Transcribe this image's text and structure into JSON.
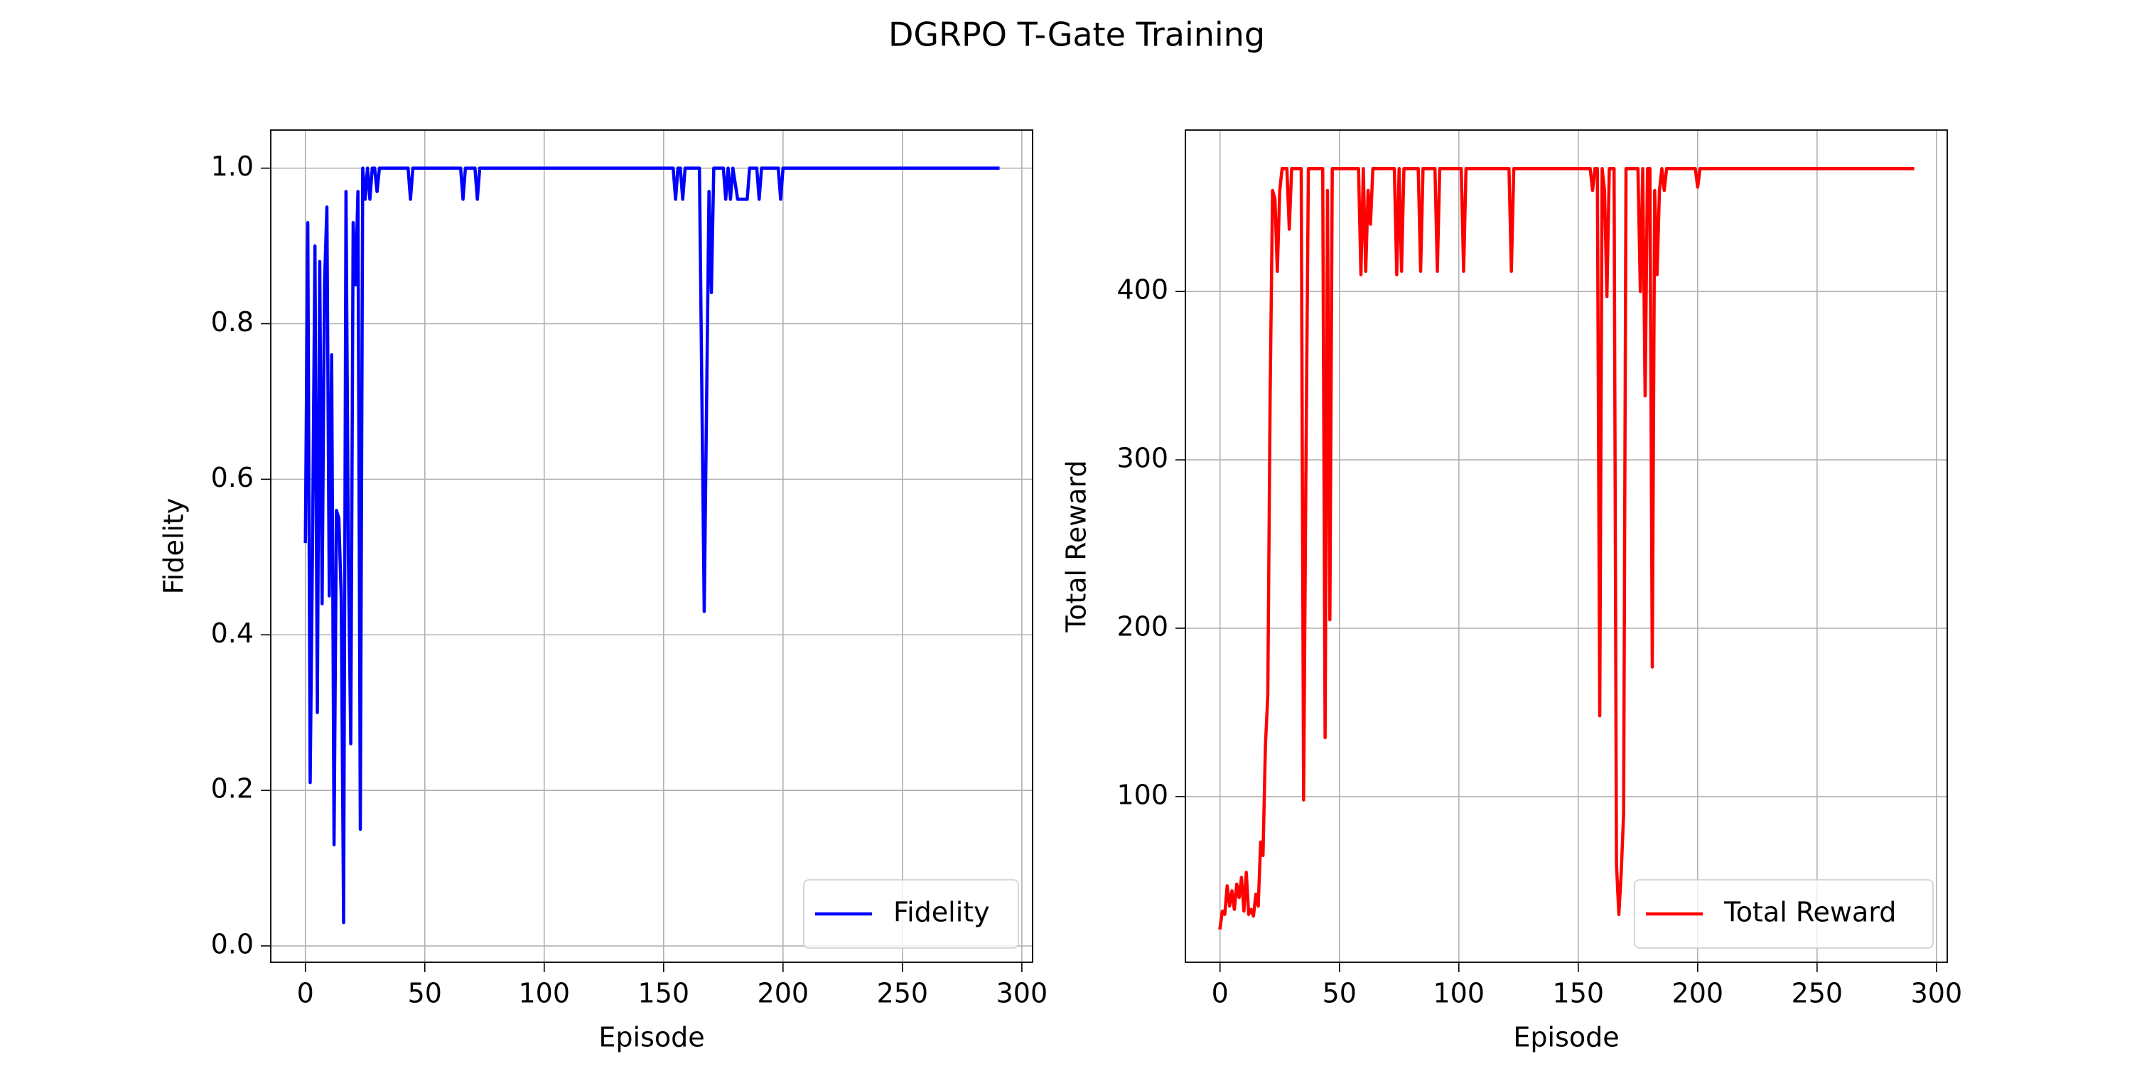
{
  "title": "DGRPO T-Gate Training",
  "chart_data": [
    {
      "type": "line",
      "x_label": "Episode",
      "y_label": "Fidelity",
      "x": [
        0,
        1,
        2,
        3,
        4,
        5,
        6,
        7,
        8,
        9,
        10,
        11,
        12,
        13,
        14,
        15,
        16,
        17,
        18,
        19,
        20,
        21,
        22,
        23,
        24,
        25,
        26,
        27,
        28,
        29,
        30,
        31,
        43,
        44,
        45,
        65,
        66,
        67,
        71,
        72,
        73,
        154,
        155,
        156,
        157,
        158,
        159,
        165,
        167,
        169,
        170,
        171,
        175,
        176,
        177,
        178,
        179,
        181,
        185,
        186,
        189,
        190,
        191,
        198,
        199,
        200,
        290
      ],
      "series": [
        {
          "name": "Fidelity",
          "color": "#0000ff",
          "values": [
            0.52,
            0.93,
            0.21,
            0.52,
            0.9,
            0.3,
            0.88,
            0.44,
            0.85,
            0.95,
            0.45,
            0.76,
            0.13,
            0.56,
            0.55,
            0.45,
            0.03,
            0.97,
            0.5,
            0.26,
            0.93,
            0.85,
            0.97,
            0.15,
            1.0,
            0.96,
            1.0,
            0.96,
            1.0,
            1.0,
            0.97,
            1.0,
            1.0,
            0.96,
            1.0,
            1.0,
            0.96,
            1.0,
            1.0,
            0.96,
            1.0,
            1.0,
            0.96,
            1.0,
            1.0,
            0.96,
            1.0,
            1.0,
            0.43,
            0.97,
            0.84,
            1.0,
            1.0,
            0.96,
            1.0,
            0.96,
            1.0,
            0.96,
            0.96,
            1.0,
            1.0,
            0.96,
            1.0,
            1.0,
            0.96,
            1.0,
            1.0
          ]
        }
      ],
      "xlim": [
        -14.5,
        304.5
      ],
      "xticks": [
        0,
        50,
        100,
        150,
        200,
        250,
        300
      ],
      "ylim": [
        -0.021,
        1.049
      ],
      "yticks": [
        {
          "value": 0,
          "label": "0.0"
        },
        0.2,
        0.4,
        0.6,
        0.8,
        {
          "value": 1,
          "label": "1.0"
        }
      ],
      "grid": true,
      "legend": "lower right"
    },
    {
      "type": "line",
      "x_label": "Episode",
      "y_label": "Total Reward",
      "x": [
        0,
        1,
        2,
        3,
        4,
        5,
        6,
        7,
        8,
        9,
        10,
        11,
        12,
        13,
        14,
        15,
        16,
        17,
        18,
        19,
        20,
        21,
        22,
        23,
        24,
        25,
        26,
        27,
        28,
        29,
        30,
        34,
        35,
        36,
        37,
        43,
        44,
        45,
        46,
        47,
        58,
        59,
        60,
        61,
        62,
        63,
        64,
        73,
        74,
        75,
        76,
        77,
        83,
        84,
        85,
        90,
        91,
        92,
        101,
        102,
        103,
        121,
        122,
        123,
        155,
        156,
        157,
        158,
        159,
        160,
        161,
        162,
        163,
        165,
        166,
        167,
        168,
        169,
        170,
        175,
        176,
        177,
        178,
        179,
        180,
        181,
        182,
        183,
        184,
        185,
        186,
        187,
        199,
        200,
        201,
        290
      ],
      "series": [
        {
          "name": "Total Reward",
          "color": "#ff0000",
          "values": [
            22,
            32,
            30,
            47,
            35,
            44,
            33,
            48,
            40,
            52,
            32,
            55,
            30,
            33,
            29,
            42,
            35,
            73,
            65,
            130,
            160,
            340,
            460,
            455,
            412,
            460,
            473,
            473,
            473,
            437,
            473,
            473,
            98,
            300,
            473,
            473,
            135,
            460,
            205,
            473,
            473,
            410,
            473,
            412,
            460,
            440,
            473,
            473,
            410,
            473,
            412,
            473,
            473,
            412,
            473,
            473,
            412,
            473,
            473,
            412,
            473,
            473,
            412,
            473,
            473,
            460,
            473,
            473,
            148,
            473,
            460,
            397,
            473,
            473,
            60,
            30,
            55,
            90,
            473,
            473,
            400,
            473,
            338,
            473,
            473,
            177,
            460,
            410,
            460,
            473,
            460,
            473,
            473,
            462,
            473,
            473
          ]
        }
      ],
      "xlim": [
        -14.5,
        304.5
      ],
      "xticks": [
        0,
        50,
        100,
        150,
        200,
        250,
        300
      ],
      "ylim": [
        1.6,
        495.9
      ],
      "yticks": [
        100,
        200,
        300,
        400
      ],
      "grid": true,
      "legend": "lower right"
    }
  ]
}
